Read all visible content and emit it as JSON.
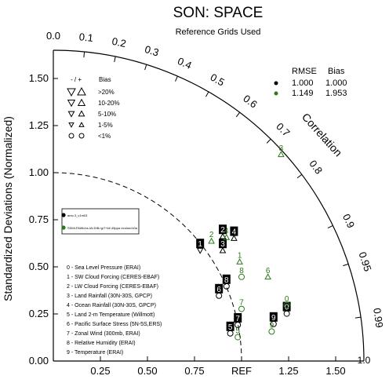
{
  "chart_data": {
    "type": "scatter",
    "subtype": "taylor-diagram",
    "title": "SON: SPACE",
    "subtitle": "Reference Grids Used",
    "ylabel": "Standardized Deviations (Normalized)",
    "arc_label": "Correlation",
    "ref_label": "REF",
    "ylim": [
      0,
      1.65
    ],
    "xlim": [
      0,
      1.65
    ],
    "x_ticks": [
      "0.25",
      "0.50",
      "0.75",
      "REF",
      "1.25",
      "1.50"
    ],
    "x_tick_values": [
      0.25,
      0.5,
      0.75,
      1.0,
      1.25,
      1.5
    ],
    "x_end_label": "1.0",
    "y_ticks": [
      "0.00",
      "0.25",
      "0.50",
      "0.75",
      "1.00",
      "1.25",
      "1.50"
    ],
    "y_tick_values": [
      0.0,
      0.25,
      0.5,
      0.75,
      1.0,
      1.25,
      1.5
    ],
    "corr_labels": [
      "0.0",
      "0.1",
      "0.2",
      "0.3",
      "0.4",
      "0.5",
      "0.6",
      "0.7",
      "0.8",
      "0.9",
      "0.95",
      "0.99"
    ],
    "corr_values": [
      0.0,
      0.1,
      0.2,
      0.3,
      0.4,
      0.5,
      0.6,
      0.7,
      0.8,
      0.9,
      0.95,
      0.99
    ],
    "bias_legend": {
      "header_sign": "- / +",
      "header_bias": "Bias",
      "rows": [
        ">20%",
        "10-20%",
        "5-10%",
        "1-5%",
        "<1%"
      ]
    },
    "rmse_legend": {
      "header_rmse": "RMSE",
      "header_bias": "Bias",
      "rows": [
        {
          "color": "#000000",
          "rmse": "1.000",
          "bias": "1.000"
        },
        {
          "color": "#2a7a1a",
          "rmse": "1.149",
          "bias": "1.953"
        }
      ]
    },
    "case_box": {
      "entries": [
        "amo.3_v1m03",
        "SSMI.FAWb/cs.IAl.DIB.rg/7+kt/.45ppa /cndun//c0a"
      ]
    },
    "variables": [
      "0 - Sea Level Pressure (ERAI)",
      "1 - SW Cloud Forcing (CERES-EBAF)",
      "2 - LW Cloud Forcing (CERES-EBAF)",
      "3 - Land Rainfall (30N-30S, GPCP)",
      "4 - Ocean Rainfall (30N-30S, GPCP)",
      "5 - Land 2-m Temperature (Willmott)",
      "6 - Pacific Surface Stress (5N-5S,ERS)",
      "7 - Zonal Wind (300mb, ERAI)",
      "8 - Relative Humidity (ERAI)",
      "9 - Temperature (ERAI)"
    ],
    "series": [
      {
        "color": "#000000",
        "points": [
          {
            "label": "0",
            "x": 1.24,
            "y": 0.285,
            "marker": "circle"
          },
          {
            "label": "1",
            "x": 0.78,
            "y": 0.62,
            "marker": "down-triangle"
          },
          {
            "label": "2",
            "x": 0.9,
            "y": 0.695,
            "marker": "up-triangle"
          },
          {
            "label": "3",
            "x": 0.9,
            "y": 0.62,
            "marker": "up-triangle"
          },
          {
            "label": "4",
            "x": 0.96,
            "y": 0.685,
            "marker": "up-triangle"
          },
          {
            "label": "5",
            "x": 0.94,
            "y": 0.18,
            "marker": "circle"
          },
          {
            "label": "6",
            "x": 0.88,
            "y": 0.38,
            "marker": "circle"
          },
          {
            "label": "7",
            "x": 0.98,
            "y": 0.225,
            "marker": "circle"
          },
          {
            "label": "8",
            "x": 0.92,
            "y": 0.43,
            "marker": "circle"
          },
          {
            "label": "9",
            "x": 1.17,
            "y": 0.23,
            "marker": "circle"
          }
        ]
      },
      {
        "color": "#2a7a1a",
        "points": [
          {
            "label": "0",
            "x": 1.24,
            "y": 0.33,
            "marker": "circle"
          },
          {
            "label": "1",
            "x": 0.99,
            "y": 0.56,
            "marker": "up-triangle"
          },
          {
            "label": "2",
            "x": 0.84,
            "y": 0.67,
            "marker": "up-triangle"
          },
          {
            "label": "3",
            "x": 1.21,
            "y": 1.13,
            "marker": "up-triangle"
          },
          {
            "label": "4",
            "x": 0.92,
            "y": 0.69,
            "marker": "up-triangle"
          },
          {
            "label": "5",
            "x": 0.98,
            "y": 0.16,
            "marker": "circle"
          },
          {
            "label": "6",
            "x": 1.14,
            "y": 0.48,
            "marker": "up-triangle"
          },
          {
            "label": "7",
            "x": 1.0,
            "y": 0.31,
            "marker": "circle"
          },
          {
            "label": "8",
            "x": 1.0,
            "y": 0.48,
            "marker": "circle"
          },
          {
            "label": "9",
            "x": 1.16,
            "y": 0.19,
            "marker": "circle"
          }
        ]
      }
    ]
  }
}
